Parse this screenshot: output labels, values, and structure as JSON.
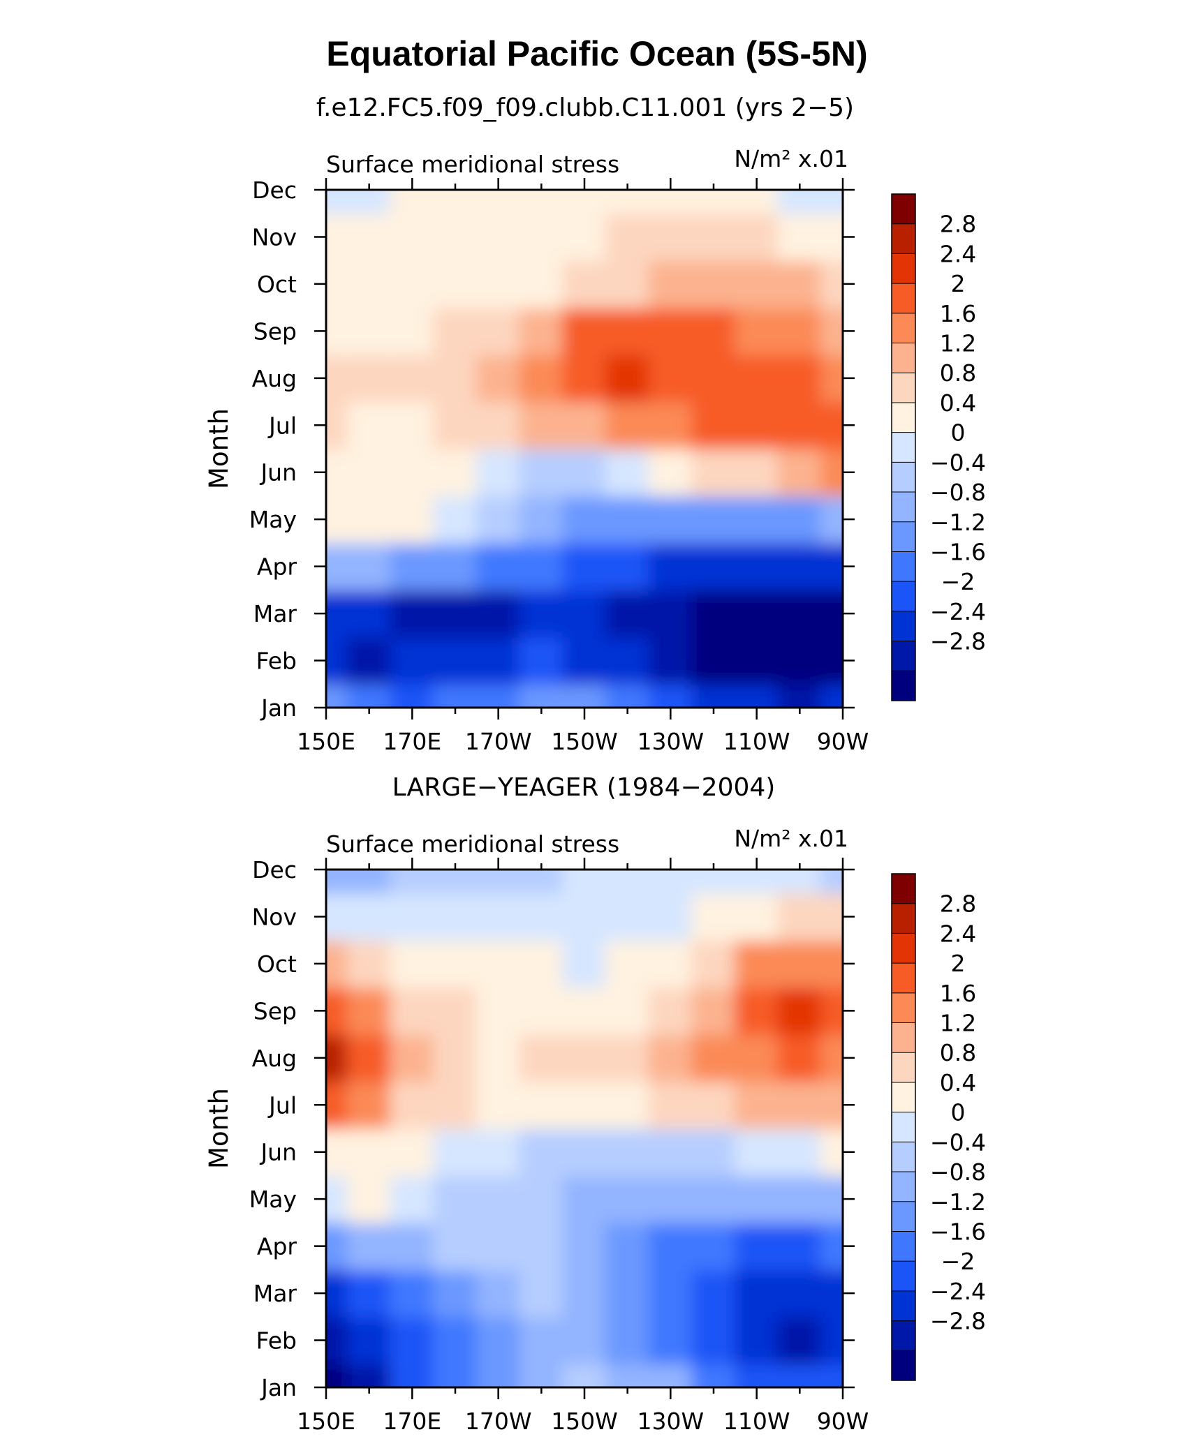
{
  "title": "Equatorial Pacific Ocean (5S-5N)",
  "colors": [
    "#00007f",
    "#0018a8",
    "#0033d4",
    "#1b55f7",
    "#3f78ff",
    "#6b98ff",
    "#93b4ff",
    "#b6ceff",
    "#d6e6ff",
    "#fff2e0",
    "#fdd6bf",
    "#fcb28f",
    "#fb8a57",
    "#f75c26",
    "#e33405",
    "#b82000",
    "#7f0000"
  ],
  "chart_data": [
    {
      "type": "heatmap",
      "title": "f.e12.FC5.f09_f09.clubb.C11.001 (yrs 2−5)",
      "left_label": "Surface meridional stress",
      "right_label": "N/m² x.01",
      "xlabel": "",
      "ylabel": "Month",
      "x_ticks": [
        "150E",
        "170E",
        "170W",
        "150W",
        "130W",
        "110W",
        "90W"
      ],
      "y_ticks": [
        "Jan",
        "Feb",
        "Mar",
        "Apr",
        "May",
        "Jun",
        "Jul",
        "Aug",
        "Sep",
        "Oct",
        "Nov",
        "Dec"
      ],
      "x_lon": [
        150,
        160,
        170,
        180,
        190,
        200,
        210,
        220,
        230,
        240,
        250,
        260,
        270
      ],
      "xlim": [
        150,
        270
      ],
      "colorbar_levels": [
        "2.8",
        "2.4",
        "2",
        "1.6",
        "1.2",
        "0.8",
        "0.4",
        "0",
        "−0.4",
        "−0.8",
        "−1.2",
        "−1.6",
        "−2",
        "−2.4",
        "−2.8"
      ],
      "values": [
        [
          -1.2,
          -1.4,
          -1.8,
          -1.6,
          -1.4,
          -1.2,
          -1.2,
          -1.4,
          -1.8,
          -2.2,
          -2.4,
          -2.6,
          -2.4
        ],
        [
          -2.4,
          -2.6,
          -2.4,
          -2.2,
          -2.2,
          -2.0,
          -2.2,
          -2.4,
          -2.8,
          -3.0,
          -3.2,
          -3.2,
          -3.0
        ],
        [
          -2.2,
          -2.4,
          -2.6,
          -2.6,
          -2.6,
          -2.4,
          -2.4,
          -2.6,
          -2.8,
          -3.0,
          -3.2,
          -3.2,
          -3.0
        ],
        [
          -0.6,
          -0.8,
          -1.0,
          -1.2,
          -1.4,
          -1.6,
          -1.8,
          -2.0,
          -2.2,
          -2.2,
          -2.4,
          -2.4,
          -2.2
        ],
        [
          0.6,
          0.6,
          0.4,
          0.2,
          -0.4,
          -0.8,
          -1.0,
          -1.2,
          -1.2,
          -1.2,
          -1.0,
          -1.0,
          -0.8
        ],
        [
          0.6,
          0.6,
          0.6,
          0.4,
          0.0,
          -0.4,
          -0.2,
          0.0,
          0.4,
          0.8,
          1.0,
          1.4,
          1.6
        ],
        [
          0.8,
          0.6,
          0.6,
          0.8,
          1.0,
          1.2,
          1.4,
          1.6,
          1.8,
          2.0,
          2.0,
          2.2,
          2.2
        ],
        [
          1.0,
          0.8,
          0.8,
          1.0,
          1.2,
          1.8,
          2.2,
          2.6,
          2.4,
          2.2,
          2.0,
          2.0,
          1.8
        ],
        [
          0.6,
          0.6,
          0.6,
          0.8,
          1.0,
          1.4,
          2.0,
          2.2,
          2.2,
          2.0,
          1.8,
          1.6,
          1.4
        ],
        [
          0.6,
          0.4,
          0.4,
          0.4,
          0.6,
          0.6,
          0.8,
          1.0,
          1.2,
          1.4,
          1.4,
          1.2,
          1.0
        ],
        [
          0.4,
          0.4,
          0.4,
          0.4,
          0.4,
          0.4,
          0.6,
          0.8,
          0.8,
          0.8,
          0.8,
          0.6,
          0.6
        ],
        [
          0.2,
          0.2,
          0.4,
          0.4,
          0.4,
          0.4,
          0.4,
          0.4,
          0.4,
          0.4,
          0.4,
          0.2,
          0.2
        ]
      ]
    },
    {
      "type": "heatmap",
      "title": "LARGE−YEAGER (1984−2004)",
      "left_label": "Surface meridional stress",
      "right_label": "N/m² x.01",
      "xlabel": "",
      "ylabel": "Month",
      "x_ticks": [
        "150E",
        "170E",
        "170W",
        "150W",
        "130W",
        "110W",
        "90W"
      ],
      "y_ticks": [
        "Jan",
        "Feb",
        "Mar",
        "Apr",
        "May",
        "Jun",
        "Jul",
        "Aug",
        "Sep",
        "Oct",
        "Nov",
        "Dec"
      ],
      "x_lon": [
        150,
        160,
        170,
        180,
        190,
        200,
        210,
        220,
        230,
        240,
        250,
        260,
        270
      ],
      "xlim": [
        150,
        270
      ],
      "colorbar_levels": [
        "2.8",
        "2.4",
        "2",
        "1.6",
        "1.2",
        "0.8",
        "0.4",
        "0",
        "−0.4",
        "−0.8",
        "−1.2",
        "−1.6",
        "−2",
        "−2.4",
        "−2.8"
      ],
      "values": [
        [
          -3.0,
          -2.6,
          -2.0,
          -1.4,
          -1.0,
          -0.6,
          -0.4,
          -0.6,
          -0.8,
          -1.4,
          -1.8,
          -2.0,
          -1.8
        ],
        [
          -2.8,
          -2.4,
          -2.0,
          -1.6,
          -1.0,
          -0.6,
          -0.6,
          -1.0,
          -1.4,
          -1.8,
          -2.4,
          -2.6,
          -2.2
        ],
        [
          -2.4,
          -1.8,
          -1.4,
          -1.0,
          -0.6,
          -0.4,
          -0.6,
          -1.2,
          -1.6,
          -1.8,
          -2.2,
          -2.4,
          -2.2
        ],
        [
          -1.0,
          -0.8,
          -0.6,
          -0.4,
          -0.4,
          -0.4,
          -0.8,
          -1.2,
          -1.4,
          -1.6,
          -1.8,
          -1.8,
          -1.6
        ],
        [
          0.2,
          0.4,
          0.2,
          -0.2,
          -0.4,
          -0.4,
          -0.6,
          -0.6,
          -0.6,
          -0.8,
          -0.8,
          -0.8,
          -0.6
        ],
        [
          0.6,
          0.4,
          0.4,
          0.2,
          0.0,
          -0.2,
          -0.2,
          -0.2,
          -0.2,
          -0.2,
          0.0,
          0.2,
          0.4
        ],
        [
          2.0,
          1.6,
          1.0,
          0.8,
          0.4,
          0.4,
          0.4,
          0.6,
          0.8,
          1.0,
          1.2,
          1.4,
          1.4
        ],
        [
          3.0,
          2.2,
          1.2,
          1.0,
          0.6,
          0.8,
          0.8,
          1.0,
          1.2,
          1.6,
          1.8,
          2.0,
          1.8
        ],
        [
          2.0,
          1.6,
          1.0,
          0.8,
          0.4,
          0.6,
          0.6,
          0.6,
          0.8,
          1.4,
          2.2,
          2.6,
          2.0
        ],
        [
          1.4,
          1.0,
          0.6,
          0.6,
          0.4,
          0.4,
          0.2,
          0.4,
          0.6,
          1.0,
          1.6,
          1.8,
          1.6
        ],
        [
          0.2,
          0.2,
          0.2,
          0.2,
          0.0,
          0.0,
          0.2,
          0.2,
          0.2,
          0.4,
          0.6,
          0.8,
          0.8
        ],
        [
          -0.8,
          -0.6,
          -0.4,
          -0.2,
          -0.4,
          -0.2,
          0.0,
          0.0,
          0.0,
          0.2,
          0.2,
          0.0,
          -0.2
        ]
      ]
    }
  ]
}
